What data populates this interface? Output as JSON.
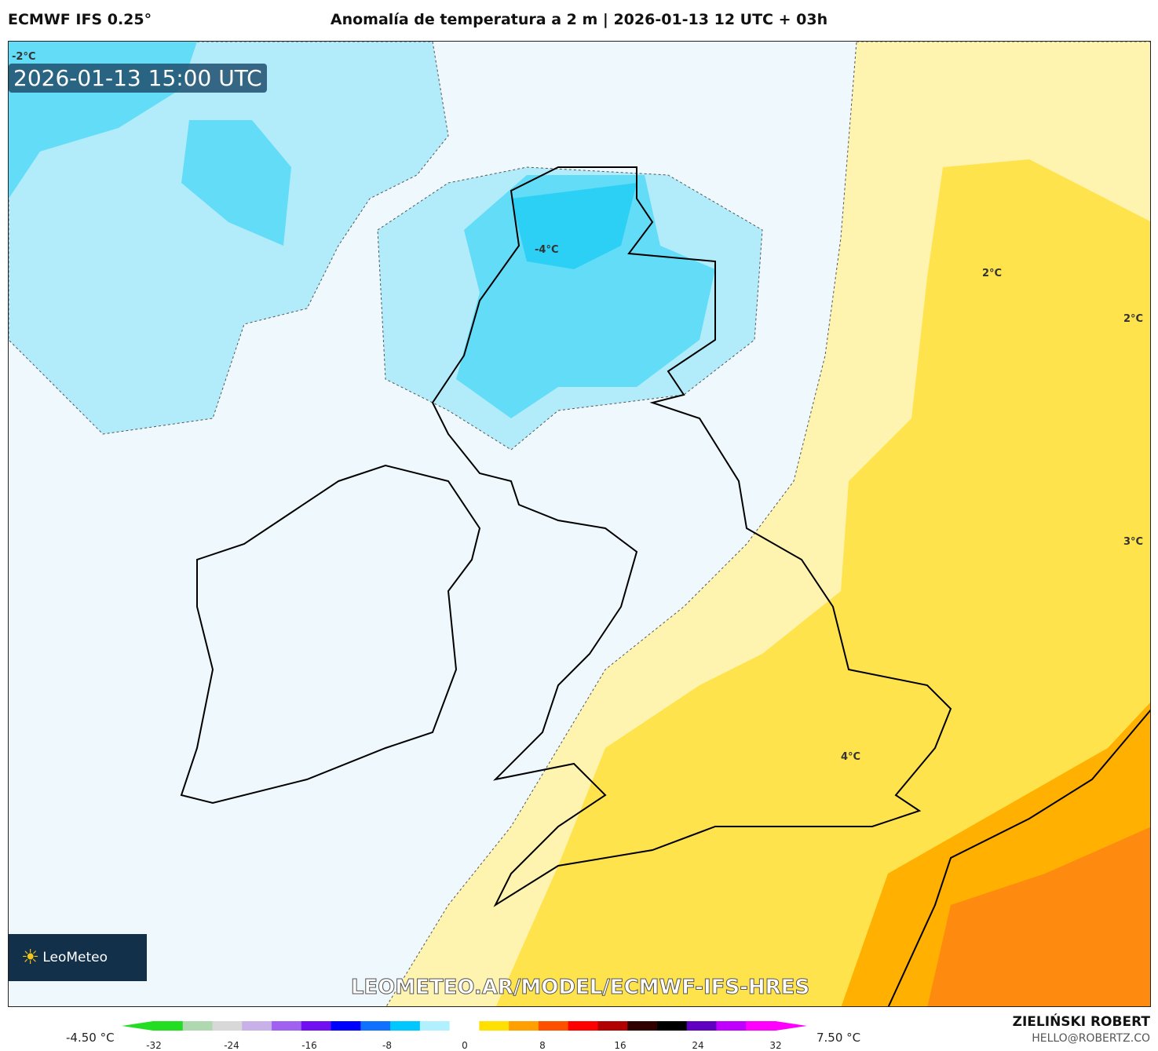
{
  "header": {
    "model": "ECMWF IFS 0.25°",
    "title": "Anomalía de temperatura a 2 m | 2026-01-13 12 UTC + 03h"
  },
  "map": {
    "valid_time": "2026-01-13 15:00 UTC",
    "contour_labels": [
      "-2°C",
      "-4°C",
      "2°C",
      "2°C",
      "3°C",
      "4°C"
    ],
    "watermark": "LEOMETEO.AR/MODEL/ECMWF-IFS-HRES",
    "logo": "LeoMeteo",
    "region": "British Isles"
  },
  "colorbar": {
    "min_label": "-4.50 °C",
    "max_label": "7.50 °C",
    "ticks": [
      "-32",
      "-24",
      "-16",
      "-8",
      "0",
      "8",
      "16",
      "24",
      "32"
    ],
    "colors": [
      "#22dd22",
      "#b0d8b0",
      "#d8d8d8",
      "#c8b0e8",
      "#a060f0",
      "#7010f0",
      "#0000ff",
      "#1070ff",
      "#00c8ff",
      "#b0f0ff",
      "#ffffff",
      "#ffe000",
      "#ffa000",
      "#ff5000",
      "#ff0000",
      "#b00000",
      "#300000",
      "#000000",
      "#6000c0",
      "#c000ff",
      "#ff00ff"
    ]
  },
  "credits": {
    "author": "ZIELIŃSKI ROBERT",
    "email": "HELLO@ROBERTZ.CO"
  }
}
